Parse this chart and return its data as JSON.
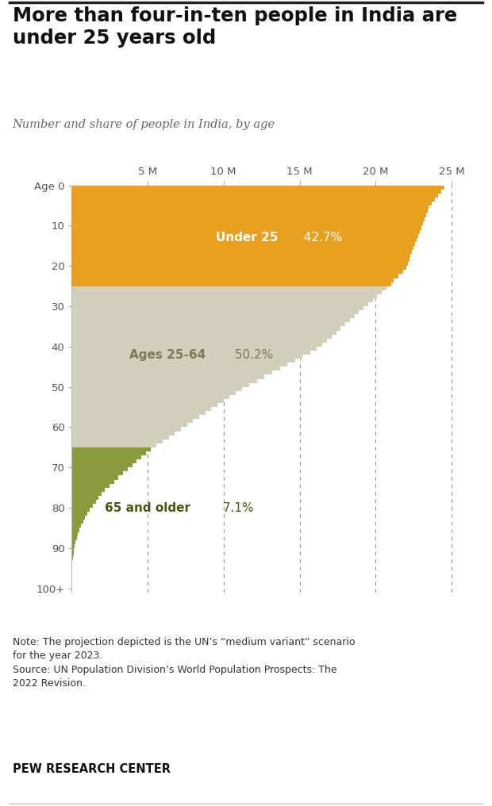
{
  "title": "More than four-in-ten people in India are\nunder 25 years old",
  "subtitle": "Number and share of people in India, by age",
  "note": "Note: The projection depicted is the UN’s “medium variant” scenario\nfor the year 2023.\nSource: UN Population Division’s World Population Prospects: The\n2022 Revision.",
  "pew": "PEW RESEARCH CENTER",
  "xlim": [
    0,
    27
  ],
  "xticks": [
    5,
    10,
    15,
    20,
    25
  ],
  "xticklabels": [
    "5 M",
    "10 M",
    "15 M",
    "20 M",
    "25 M"
  ],
  "ytick_positions": [
    0,
    10,
    20,
    30,
    40,
    50,
    60,
    70,
    80,
    90,
    100
  ],
  "ytick_labels": [
    "Age 0",
    "10",
    "20",
    "30",
    "40",
    "50",
    "60",
    "70",
    "80",
    "90",
    "100+"
  ],
  "color_under25": "#E8A020",
  "color_25_64": "#D2CEBC",
  "color_65plus": "#8B9A3C",
  "background_color": "#FFFFFF",
  "ages": [
    0,
    1,
    2,
    3,
    4,
    5,
    6,
    7,
    8,
    9,
    10,
    11,
    12,
    13,
    14,
    15,
    16,
    17,
    18,
    19,
    20,
    21,
    22,
    23,
    24,
    25,
    26,
    27,
    28,
    29,
    30,
    31,
    32,
    33,
    34,
    35,
    36,
    37,
    38,
    39,
    40,
    41,
    42,
    43,
    44,
    45,
    46,
    47,
    48,
    49,
    50,
    51,
    52,
    53,
    54,
    55,
    56,
    57,
    58,
    59,
    60,
    61,
    62,
    63,
    64,
    65,
    66,
    67,
    68,
    69,
    70,
    71,
    72,
    73,
    74,
    75,
    76,
    77,
    78,
    79,
    80,
    81,
    82,
    83,
    84,
    85,
    86,
    87,
    88,
    89,
    90,
    91,
    92,
    93,
    94,
    95,
    96,
    97,
    98,
    99,
    100
  ],
  "pop": [
    24.5,
    24.3,
    24.1,
    23.9,
    23.7,
    23.5,
    23.4,
    23.3,
    23.2,
    23.1,
    23.0,
    22.9,
    22.8,
    22.7,
    22.6,
    22.5,
    22.4,
    22.3,
    22.2,
    22.1,
    22.0,
    21.8,
    21.5,
    21.2,
    21.0,
    20.7,
    20.4,
    20.1,
    19.8,
    19.5,
    19.2,
    18.9,
    18.6,
    18.3,
    18.0,
    17.7,
    17.4,
    17.1,
    16.8,
    16.5,
    16.1,
    15.7,
    15.2,
    14.7,
    14.2,
    13.7,
    13.2,
    12.7,
    12.2,
    11.7,
    11.2,
    10.8,
    10.4,
    10.0,
    9.6,
    9.2,
    8.8,
    8.4,
    8.0,
    7.6,
    7.2,
    6.8,
    6.4,
    6.0,
    5.6,
    5.2,
    4.9,
    4.6,
    4.3,
    4.0,
    3.7,
    3.4,
    3.1,
    2.8,
    2.5,
    2.2,
    2.0,
    1.8,
    1.6,
    1.4,
    1.2,
    1.05,
    0.9,
    0.78,
    0.65,
    0.53,
    0.44,
    0.36,
    0.29,
    0.23,
    0.18,
    0.14,
    0.1,
    0.07,
    0.05,
    0.03,
    0.02,
    0.015,
    0.01,
    0.005,
    0.002
  ]
}
